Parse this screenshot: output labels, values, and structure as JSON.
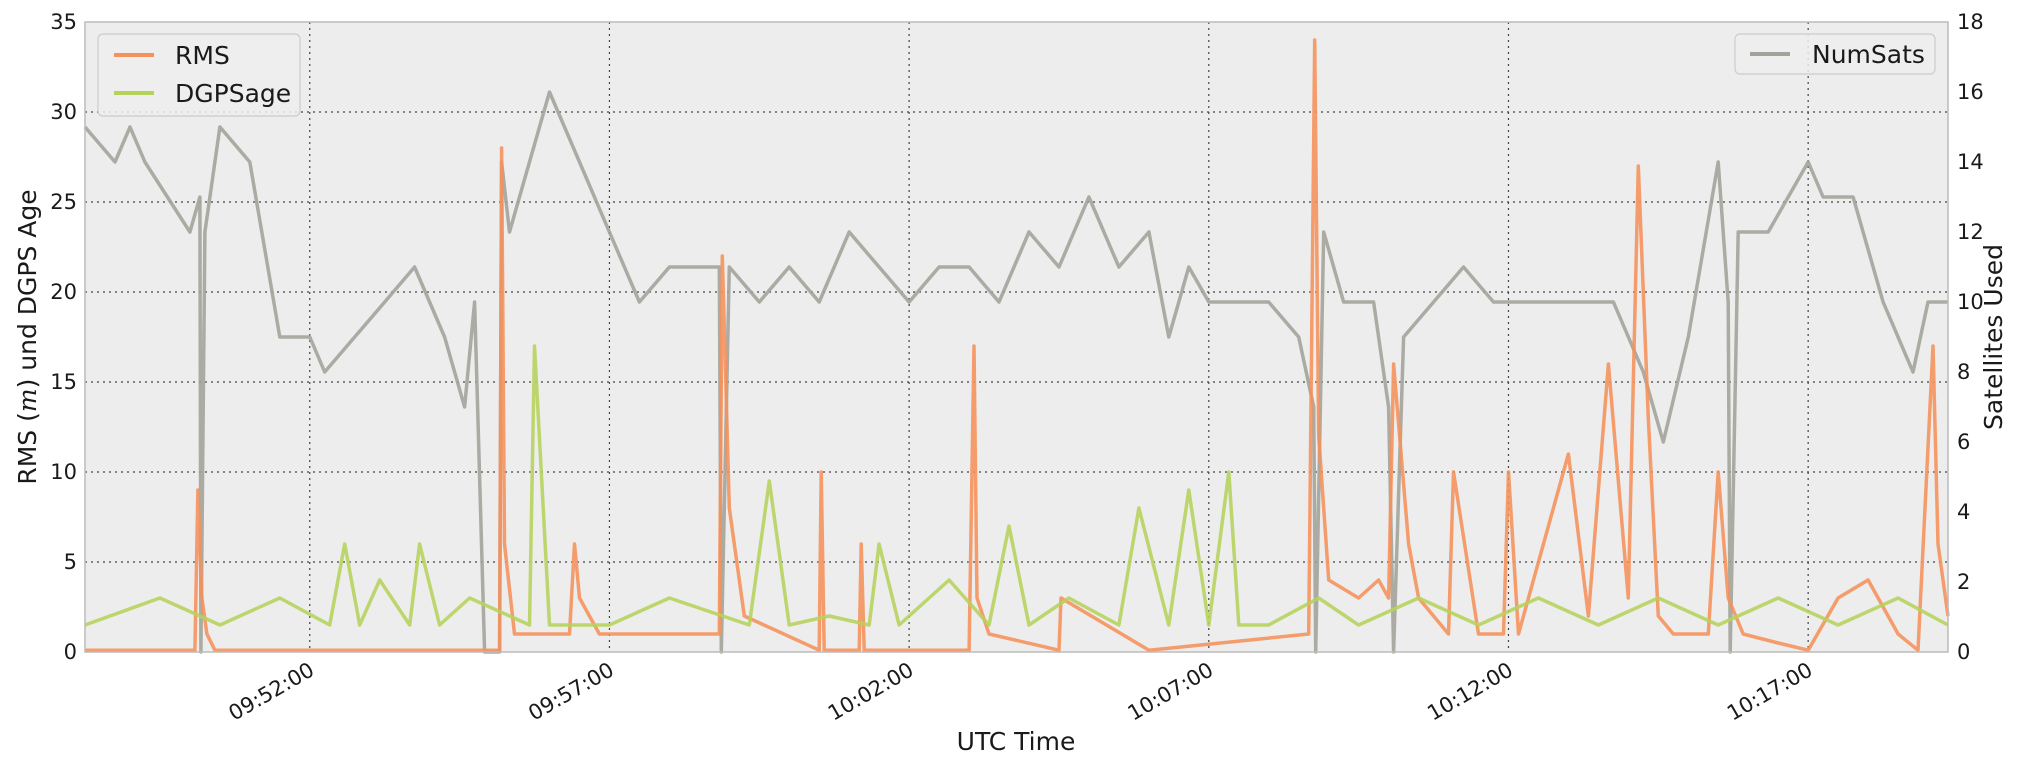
{
  "chart_data": {
    "type": "line",
    "xlabel": "UTC Time",
    "ylabel_left": "RMS (m) und DGPS Age",
    "ylabel_left_parts": [
      "RMS (",
      "m",
      ") und DGPS Age"
    ],
    "ylabel_right": "Satellites Used",
    "x_range": [
      "09:48:15",
      "10:19:20"
    ],
    "x_ticks": [
      "09:52:00",
      "09:57:00",
      "10:02:00",
      "10:07:00",
      "10:12:00",
      "10:17:00"
    ],
    "ylim_left": [
      0,
      35
    ],
    "yticks_left": [
      0,
      5,
      10,
      15,
      20,
      25,
      30,
      35
    ],
    "ylim_right": [
      0,
      18
    ],
    "yticks_right": [
      0,
      2,
      4,
      6,
      8,
      10,
      12,
      14,
      16,
      18
    ],
    "grid": true,
    "legends": [
      {
        "placement": "upper-left",
        "entries": [
          "RMS",
          "DGPSage"
        ]
      },
      {
        "placement": "upper-right",
        "entries": [
          "NumSats"
        ]
      }
    ],
    "colors": {
      "RMS": "#f5915a",
      "DGPSage": "#b5d35b",
      "NumSats": "#a2a29a",
      "plot_bg": "#ededed"
    },
    "series": [
      {
        "name": "RMS",
        "axis": "left",
        "x": [
          "09:48:15",
          "09:50:05",
          "09:50:08",
          "09:50:12",
          "09:50:17",
          "09:50:25",
          "09:55:10",
          "09:55:12",
          "09:55:15",
          "09:55:25",
          "09:56:20",
          "09:56:25",
          "09:56:30",
          "09:56:50",
          "09:58:50",
          "09:58:53",
          "09:59:00",
          "09:59:15",
          "10:00:30",
          "10:00:32",
          "10:00:35",
          "10:01:10",
          "10:01:12",
          "10:01:15",
          "10:03:00",
          "10:03:05",
          "10:03:08",
          "10:03:20",
          "10:04:30",
          "10:04:32",
          "10:06:00",
          "10:08:40",
          "10:08:46",
          "10:08:50",
          "10:09:00",
          "10:09:30",
          "10:09:50",
          "10:10:00",
          "10:10:05",
          "10:10:20",
          "10:10:30",
          "10:11:00",
          "10:11:05",
          "10:11:30",
          "10:11:55",
          "10:12:00",
          "10:12:10",
          "10:13:00",
          "10:13:20",
          "10:13:40",
          "10:14:00",
          "10:14:10",
          "10:14:20",
          "10:14:30",
          "10:14:45",
          "10:15:20",
          "10:15:30",
          "10:15:40",
          "10:15:55",
          "10:16:30",
          "10:17:00",
          "10:17:30",
          "10:18:00",
          "10:18:30",
          "10:18:50",
          "10:19:05",
          "10:19:10",
          "10:19:20"
        ],
        "y": [
          0.1,
          0.1,
          9,
          3,
          1,
          0.1,
          0.1,
          28,
          6,
          1,
          1,
          6,
          3,
          1,
          1,
          22,
          8,
          2,
          0.1,
          10,
          0.1,
          0.1,
          6,
          0.1,
          0.1,
          17,
          3,
          1,
          0.1,
          3,
          0.1,
          1,
          34,
          12,
          4,
          3,
          4,
          3,
          16,
          6,
          3,
          1,
          10,
          1,
          1,
          10,
          1,
          11,
          2,
          16,
          3,
          27,
          13,
          2,
          1,
          1,
          10,
          3,
          1,
          0.5,
          0.1,
          3,
          4,
          1,
          0.1,
          17,
          6,
          2
        ]
      },
      {
        "name": "DGPSage",
        "axis": "left",
        "x": [
          "09:48:15",
          "09:49:30",
          "09:50:30",
          "09:51:30",
          "09:52:20",
          "09:52:35",
          "09:52:50",
          "09:53:10",
          "09:53:40",
          "09:53:50",
          "09:54:10",
          "09:54:40",
          "09:55:40",
          "09:55:45",
          "09:56:00",
          "09:57:00",
          "09:58:00",
          "09:59:20",
          "09:59:40",
          "10:00:00",
          "10:00:40",
          "10:01:20",
          "10:01:30",
          "10:01:50",
          "10:02:40",
          "10:03:20",
          "10:03:40",
          "10:04:00",
          "10:04:40",
          "10:05:30",
          "10:05:50",
          "10:06:20",
          "10:06:40",
          "10:07:00",
          "10:07:20",
          "10:07:30",
          "10:08:00",
          "10:08:50",
          "10:09:30",
          "10:10:30",
          "10:11:30",
          "10:12:30",
          "10:13:30",
          "10:14:30",
          "10:15:30",
          "10:16:30",
          "10:17:30",
          "10:18:30",
          "10:19:20"
        ],
        "y": [
          1.5,
          3,
          1.5,
          3,
          1.5,
          6,
          1.5,
          4,
          1.5,
          6,
          1.5,
          3,
          1.5,
          17,
          1.5,
          1.5,
          3,
          1.5,
          9.5,
          1.5,
          2,
          1.5,
          6,
          1.5,
          4,
          1.5,
          7,
          1.5,
          3,
          1.5,
          8,
          1.5,
          9,
          1.5,
          10,
          1.5,
          1.5,
          3,
          1.5,
          3,
          1.5,
          3,
          1.5,
          3,
          1.5,
          3,
          1.5,
          3,
          1.5
        ]
      },
      {
        "name": "NumSats",
        "axis": "right",
        "x": [
          "09:48:15",
          "09:48:45",
          "09:49:00",
          "09:49:15",
          "09:50:00",
          "09:50:10",
          "09:50:11",
          "09:50:15",
          "09:50:30",
          "09:51:00",
          "09:51:30",
          "09:52:00",
          "09:52:15",
          "09:52:45",
          "09:53:15",
          "09:53:45",
          "09:54:15",
          "09:54:35",
          "09:54:45",
          "09:54:55",
          "09:55:10",
          "09:55:12",
          "09:55:20",
          "09:55:30",
          "09:56:00",
          "09:56:30",
          "09:57:00",
          "09:57:30",
          "09:58:00",
          "09:58:50",
          "09:58:52",
          "09:59:00",
          "09:59:30",
          "10:00:00",
          "10:00:30",
          "10:01:00",
          "10:01:30",
          "10:02:00",
          "10:02:30",
          "10:03:00",
          "10:03:30",
          "10:04:00",
          "10:04:30",
          "10:05:00",
          "10:05:30",
          "10:06:00",
          "10:06:20",
          "10:06:40",
          "10:07:00",
          "10:07:30",
          "10:08:00",
          "10:08:30",
          "10:08:45",
          "10:08:47",
          "10:08:55",
          "10:09:15",
          "10:09:45",
          "10:10:00",
          "10:10:05",
          "10:10:15",
          "10:10:45",
          "10:11:15",
          "10:11:45",
          "10:12:15",
          "10:12:45",
          "10:13:15",
          "10:13:45",
          "10:14:15",
          "10:14:35",
          "10:15:00",
          "10:15:30",
          "10:15:40",
          "10:15:42",
          "10:15:50",
          "10:16:20",
          "10:16:40",
          "10:17:00",
          "10:17:15",
          "10:17:45",
          "10:18:15",
          "10:18:45",
          "10:19:00",
          "10:19:20"
        ],
        "y": [
          15,
          14,
          15,
          14,
          12,
          13,
          0,
          12,
          15,
          14,
          9,
          9,
          8,
          9,
          10,
          11,
          9,
          7,
          10,
          0,
          0,
          14,
          12,
          13,
          16,
          14,
          12,
          10,
          11,
          11,
          0,
          11,
          10,
          11,
          10,
          12,
          11,
          10,
          11,
          11,
          10,
          12,
          11,
          13,
          11,
          12,
          9,
          11,
          10,
          10,
          10,
          9,
          7,
          0,
          12,
          10,
          10,
          7,
          0,
          9,
          10,
          11,
          10,
          10,
          10,
          10,
          10,
          8,
          6,
          9,
          14,
          10,
          0,
          12,
          12,
          13,
          14,
          13,
          13,
          10,
          8,
          10,
          10
        ]
      }
    ]
  }
}
